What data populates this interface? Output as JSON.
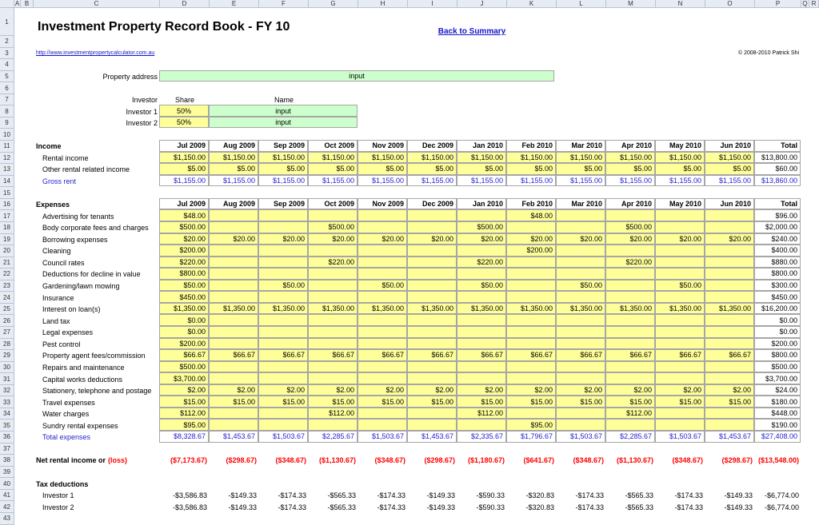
{
  "column_headers": [
    "A",
    "B",
    "C",
    "D",
    "E",
    "F",
    "G",
    "H",
    "I",
    "J",
    "K",
    "L",
    "M",
    "N",
    "O",
    "P",
    "Q",
    "R"
  ],
  "row_headers": [
    1,
    2,
    3,
    4,
    5,
    6,
    7,
    8,
    9,
    10,
    11,
    12,
    13,
    14,
    15,
    16,
    17,
    18,
    19,
    20,
    21,
    22,
    23,
    24,
    25,
    26,
    27,
    28,
    29,
    30,
    31,
    32,
    33,
    34,
    35,
    36,
    37,
    38,
    39,
    40,
    41,
    42,
    43
  ],
  "header": {
    "title": "Investment Property Record Book - FY 10",
    "back_link": "Back to Summary",
    "url": "http://www.investmentpropertycalculator.com.au",
    "copyright": "© 2008-2010 Patrick Shi"
  },
  "property": {
    "label": "Property address",
    "value": "input"
  },
  "investors": {
    "headers": [
      "Investor",
      "Share",
      "Name"
    ],
    "rows": [
      [
        "Investor 1",
        "50%",
        "input"
      ],
      [
        "Investor 2",
        "50%",
        "input"
      ]
    ]
  },
  "income": {
    "title": "Income",
    "months": [
      "Jul 2009",
      "Aug 2009",
      "Sep 2009",
      "Oct 2009",
      "Nov 2009",
      "Dec 2009",
      "Jan 2010",
      "Feb 2010",
      "Mar 2010",
      "Apr 2010",
      "May 2010",
      "Jun 2010",
      "Total"
    ],
    "rows": [
      {
        "label": "Rental income",
        "values": [
          "$1,150.00",
          "$1,150.00",
          "$1,150.00",
          "$1,150.00",
          "$1,150.00",
          "$1,150.00",
          "$1,150.00",
          "$1,150.00",
          "$1,150.00",
          "$1,150.00",
          "$1,150.00",
          "$1,150.00",
          "$13,800.00"
        ]
      },
      {
        "label": "Other rental related income",
        "values": [
          "$5.00",
          "$5.00",
          "$5.00",
          "$5.00",
          "$5.00",
          "$5.00",
          "$5.00",
          "$5.00",
          "$5.00",
          "$5.00",
          "$5.00",
          "$5.00",
          "$60.00"
        ]
      }
    ],
    "total": {
      "label": "Gross rent",
      "values": [
        "$1,155.00",
        "$1,155.00",
        "$1,155.00",
        "$1,155.00",
        "$1,155.00",
        "$1,155.00",
        "$1,155.00",
        "$1,155.00",
        "$1,155.00",
        "$1,155.00",
        "$1,155.00",
        "$1,155.00",
        "$13,860.00"
      ]
    }
  },
  "expenses": {
    "title": "Expenses",
    "months": [
      "Jul 2009",
      "Aug 2009",
      "Sep 2009",
      "Oct 2009",
      "Nov 2009",
      "Dec 2009",
      "Jan 2010",
      "Feb 2010",
      "Mar 2010",
      "Apr 2010",
      "May 2010",
      "Jun 2010",
      "Total"
    ],
    "rows": [
      {
        "label": "Advertising for tenants",
        "values": [
          "$48.00",
          null,
          null,
          null,
          null,
          null,
          null,
          "$48.00",
          null,
          null,
          null,
          null,
          "$96.00"
        ]
      },
      {
        "label": "Body corporate fees and charges",
        "values": [
          "$500.00",
          null,
          null,
          "$500.00",
          null,
          null,
          "$500.00",
          null,
          null,
          "$500.00",
          null,
          null,
          "$2,000.00"
        ]
      },
      {
        "label": "Borrowing expenses",
        "values": [
          "$20.00",
          "$20.00",
          "$20.00",
          "$20.00",
          "$20.00",
          "$20.00",
          "$20.00",
          "$20.00",
          "$20.00",
          "$20.00",
          "$20.00",
          "$20.00",
          "$240.00"
        ]
      },
      {
        "label": "Cleaning",
        "values": [
          "$200.00",
          null,
          null,
          null,
          null,
          null,
          null,
          "$200.00",
          null,
          null,
          null,
          null,
          "$400.00"
        ]
      },
      {
        "label": "Council rates",
        "values": [
          "$220.00",
          null,
          null,
          "$220.00",
          null,
          null,
          "$220.00",
          null,
          null,
          "$220.00",
          null,
          null,
          "$880.00"
        ]
      },
      {
        "label": "Deductions for decline in value",
        "values": [
          "$800.00",
          null,
          null,
          null,
          null,
          null,
          null,
          null,
          null,
          null,
          null,
          null,
          "$800.00"
        ]
      },
      {
        "label": "Gardening/lawn mowing",
        "values": [
          "$50.00",
          null,
          "$50.00",
          null,
          "$50.00",
          null,
          "$50.00",
          null,
          "$50.00",
          null,
          "$50.00",
          null,
          "$300.00"
        ]
      },
      {
        "label": "Insurance",
        "values": [
          "$450.00",
          null,
          null,
          null,
          null,
          null,
          null,
          null,
          null,
          null,
          null,
          null,
          "$450.00"
        ]
      },
      {
        "label": "Interest on loan(s)",
        "values": [
          "$1,350.00",
          "$1,350.00",
          "$1,350.00",
          "$1,350.00",
          "$1,350.00",
          "$1,350.00",
          "$1,350.00",
          "$1,350.00",
          "$1,350.00",
          "$1,350.00",
          "$1,350.00",
          "$1,350.00",
          "$16,200.00"
        ]
      },
      {
        "label": "Land tax",
        "values": [
          "$0.00",
          null,
          null,
          null,
          null,
          null,
          null,
          null,
          null,
          null,
          null,
          null,
          "$0.00"
        ]
      },
      {
        "label": "Legal expenses",
        "values": [
          "$0.00",
          null,
          null,
          null,
          null,
          null,
          null,
          null,
          null,
          null,
          null,
          null,
          "$0.00"
        ]
      },
      {
        "label": "Pest control",
        "values": [
          "$200.00",
          null,
          null,
          null,
          null,
          null,
          null,
          null,
          null,
          null,
          null,
          null,
          "$200.00"
        ]
      },
      {
        "label": "Property agent fees/commission",
        "values": [
          "$66.67",
          "$66.67",
          "$66.67",
          "$66.67",
          "$66.67",
          "$66.67",
          "$66.67",
          "$66.67",
          "$66.67",
          "$66.67",
          "$66.67",
          "$66.67",
          "$800.00"
        ]
      },
      {
        "label": "Repairs and maintenance",
        "values": [
          "$500.00",
          null,
          null,
          null,
          null,
          null,
          null,
          null,
          null,
          null,
          null,
          null,
          "$500.00"
        ]
      },
      {
        "label": "Capital works deductions",
        "values": [
          "$3,700.00",
          null,
          null,
          null,
          null,
          null,
          null,
          null,
          null,
          null,
          null,
          null,
          "$3,700.00"
        ]
      },
      {
        "label": "Stationery, telephone and postage",
        "values": [
          "$2.00",
          "$2.00",
          "$2.00",
          "$2.00",
          "$2.00",
          "$2.00",
          "$2.00",
          "$2.00",
          "$2.00",
          "$2.00",
          "$2.00",
          "$2.00",
          "$24.00"
        ]
      },
      {
        "label": "Travel expenses",
        "values": [
          "$15.00",
          "$15.00",
          "$15.00",
          "$15.00",
          "$15.00",
          "$15.00",
          "$15.00",
          "$15.00",
          "$15.00",
          "$15.00",
          "$15.00",
          "$15.00",
          "$180.00"
        ]
      },
      {
        "label": "Water charges",
        "values": [
          "$112.00",
          null,
          null,
          "$112.00",
          null,
          null,
          "$112.00",
          null,
          null,
          "$112.00",
          null,
          null,
          "$448.00"
        ]
      },
      {
        "label": "Sundry rental expenses",
        "values": [
          "$95.00",
          null,
          null,
          null,
          null,
          null,
          null,
          "$95.00",
          null,
          null,
          null,
          null,
          "$190.00"
        ]
      }
    ],
    "total": {
      "label": "Total expenses",
      "values": [
        "$8,328.67",
        "$1,453.67",
        "$1,503.67",
        "$2,285.67",
        "$1,503.67",
        "$1,453.67",
        "$2,335.67",
        "$1,796.67",
        "$1,503.67",
        "$2,285.67",
        "$1,503.67",
        "$1,453.67",
        "$27,408.00"
      ]
    }
  },
  "net": {
    "label": "Net rental income or",
    "label_loss": "(loss)",
    "values": [
      "($7,173.67)",
      "($298.67)",
      "($348.67)",
      "($1,130.67)",
      "($348.67)",
      "($298.67)",
      "($1,180.67)",
      "($641.67)",
      "($348.67)",
      "($1,130.67)",
      "($348.67)",
      "($298.67)",
      "($13,548.00)"
    ]
  },
  "tax": {
    "title": "Tax deductions",
    "rows": [
      {
        "label": "Investor 1",
        "values": [
          "-$3,586.83",
          "-$149.33",
          "-$174.33",
          "-$565.33",
          "-$174.33",
          "-$149.33",
          "-$590.33",
          "-$320.83",
          "-$174.33",
          "-$565.33",
          "-$174.33",
          "-$149.33",
          "-$6,774.00"
        ]
      },
      {
        "label": "Investor 2",
        "values": [
          "-$3,586.83",
          "-$149.33",
          "-$174.33",
          "-$565.33",
          "-$174.33",
          "-$149.33",
          "-$590.33",
          "-$320.83",
          "-$174.33",
          "-$565.33",
          "-$174.33",
          "-$149.33",
          "-$6,774.00"
        ]
      }
    ]
  }
}
